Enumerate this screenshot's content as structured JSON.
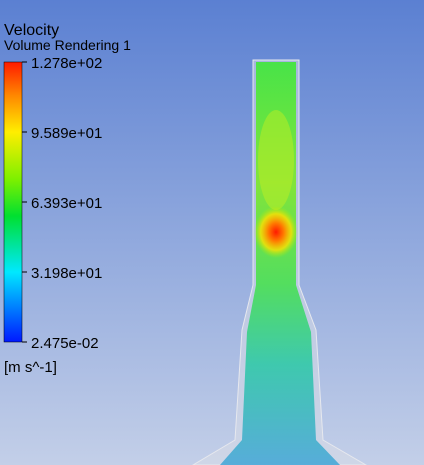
{
  "legend": {
    "title": "Velocity",
    "subtitle": "Volume Rendering 1",
    "tick_labels": [
      "1.278e+02",
      "9.589e+01",
      "6.393e+01",
      "3.198e+01",
      "2.475e-02"
    ],
    "unit": "[m s^-1]"
  }
}
